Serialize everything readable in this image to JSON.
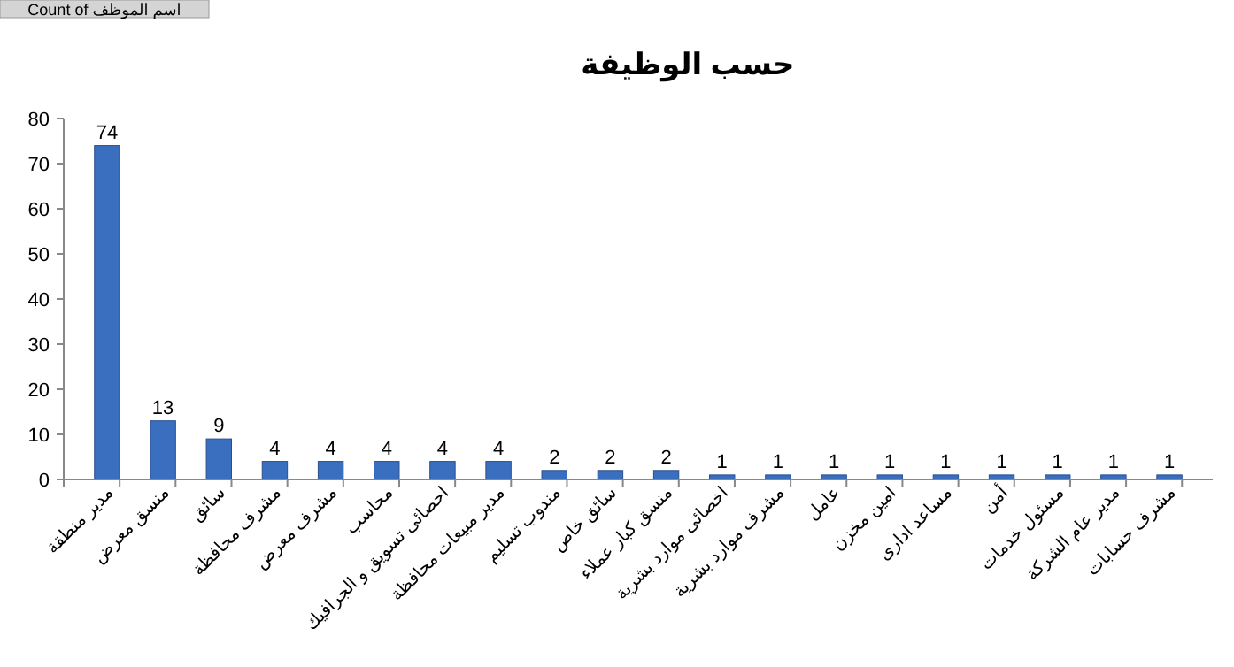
{
  "chart_data": {
    "type": "bar",
    "title": "حسب الوظيفة",
    "annotations": [
      "Count of اسم الموظف"
    ],
    "categories": [
      "مدير منطقة",
      "منسق معرض",
      "سائق",
      "مشرف محافظة",
      "مشرف معرض",
      "محاسب",
      "اخصائى تسويق و الجرافيك",
      "مدير مبيعات محافظة",
      "مندوب تسليم",
      "سائق خاص",
      "منسق كبار عملاء",
      "اخصائى موارد بشرية",
      "مشرف موارد بشرية",
      "عامل",
      "امين مخزن",
      "مساعد ادارى",
      "أمن",
      "مسئول خدمات",
      "مدير عام الشركة",
      "مشرف حسابات"
    ],
    "values": [
      74,
      13,
      9,
      4,
      4,
      4,
      4,
      4,
      2,
      2,
      2,
      1,
      1,
      1,
      1,
      1,
      1,
      1,
      1,
      1
    ],
    "color": "#3a6fc0",
    "ylim": [
      0,
      80
    ],
    "yticks": [
      0,
      10,
      20,
      30,
      40,
      50,
      60,
      70,
      80
    ],
    "data_labels": true,
    "grid": false
  }
}
